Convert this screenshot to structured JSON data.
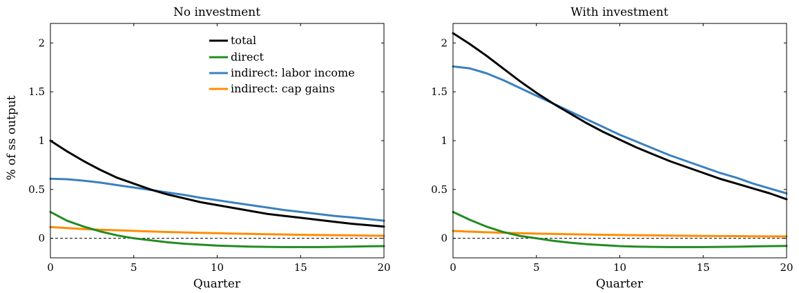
{
  "chart_data": [
    {
      "type": "line",
      "title": "No investment",
      "xlabel": "Quarter",
      "ylabel": "% of ss output",
      "xlim": [
        0,
        20
      ],
      "ylim": [
        -0.2,
        2.2
      ],
      "xticks": [
        0,
        5,
        10,
        15,
        20
      ],
      "xtick_labels": [
        "0",
        "5",
        "10",
        "15",
        "20"
      ],
      "yticks": [
        0,
        0.5,
        1,
        1.5,
        2
      ],
      "ytick_labels": [
        "0",
        "0.5",
        "1",
        "1.5",
        "2"
      ],
      "grid": false,
      "zero_line": "dashed",
      "legend_placement": "top-center",
      "x": [
        0,
        1,
        2,
        3,
        4,
        5,
        6,
        7,
        8,
        9,
        10,
        11,
        12,
        13,
        14,
        15,
        16,
        17,
        18,
        19,
        20
      ],
      "series": [
        {
          "name": "total",
          "color": "#000000",
          "values": [
            1.0,
            0.89,
            0.79,
            0.7,
            0.62,
            0.56,
            0.5,
            0.45,
            0.41,
            0.37,
            0.34,
            0.31,
            0.28,
            0.25,
            0.23,
            0.21,
            0.19,
            0.17,
            0.15,
            0.135,
            0.12
          ]
        },
        {
          "name": "direct",
          "color": "#228b22",
          "values": [
            0.27,
            0.18,
            0.12,
            0.07,
            0.03,
            0.0,
            -0.02,
            -0.04,
            -0.055,
            -0.065,
            -0.075,
            -0.08,
            -0.085,
            -0.088,
            -0.09,
            -0.09,
            -0.09,
            -0.088,
            -0.085,
            -0.082,
            -0.08
          ]
        },
        {
          "name": "indirect: labor income",
          "color": "#3a80c0",
          "values": [
            0.61,
            0.605,
            0.59,
            0.57,
            0.545,
            0.52,
            0.495,
            0.47,
            0.445,
            0.415,
            0.39,
            0.365,
            0.34,
            0.315,
            0.29,
            0.27,
            0.25,
            0.23,
            0.215,
            0.198,
            0.18
          ]
        },
        {
          "name": "indirect: cap gains",
          "color": "#ff8c00",
          "values": [
            0.115,
            0.105,
            0.095,
            0.088,
            0.082,
            0.076,
            0.07,
            0.065,
            0.06,
            0.056,
            0.052,
            0.048,
            0.045,
            0.042,
            0.039,
            0.036,
            0.034,
            0.032,
            0.03,
            0.028,
            0.026
          ]
        }
      ]
    },
    {
      "type": "line",
      "title": "With investment",
      "xlabel": "Quarter",
      "ylabel": "",
      "xlim": [
        0,
        20
      ],
      "ylim": [
        -0.2,
        2.2
      ],
      "xticks": [
        0,
        5,
        10,
        15,
        20
      ],
      "xtick_labels": [
        "0",
        "5",
        "10",
        "15",
        "20"
      ],
      "yticks": [
        0,
        0.5,
        1,
        1.5,
        2
      ],
      "ytick_labels": [
        "0",
        "0.5",
        "1",
        "1.5",
        "2"
      ],
      "grid": false,
      "zero_line": "dashed",
      "x": [
        0,
        1,
        2,
        3,
        4,
        5,
        6,
        7,
        8,
        9,
        10,
        11,
        12,
        13,
        14,
        15,
        16,
        17,
        18,
        19,
        20
      ],
      "series": [
        {
          "name": "total",
          "color": "#000000",
          "values": [
            2.1,
            1.99,
            1.87,
            1.74,
            1.61,
            1.49,
            1.38,
            1.28,
            1.18,
            1.09,
            1.01,
            0.93,
            0.86,
            0.79,
            0.73,
            0.67,
            0.61,
            0.56,
            0.51,
            0.46,
            0.4
          ]
        },
        {
          "name": "direct",
          "color": "#228b22",
          "values": [
            0.27,
            0.19,
            0.12,
            0.065,
            0.025,
            0.0,
            -0.025,
            -0.045,
            -0.06,
            -0.07,
            -0.08,
            -0.085,
            -0.088,
            -0.09,
            -0.09,
            -0.09,
            -0.088,
            -0.086,
            -0.083,
            -0.08,
            -0.078
          ]
        },
        {
          "name": "indirect: labor income",
          "color": "#3a80c0",
          "values": [
            1.76,
            1.74,
            1.69,
            1.62,
            1.54,
            1.46,
            1.38,
            1.3,
            1.22,
            1.14,
            1.06,
            0.99,
            0.92,
            0.85,
            0.79,
            0.73,
            0.67,
            0.62,
            0.56,
            0.51,
            0.46
          ]
        },
        {
          "name": "indirect: cap gains",
          "color": "#ff8c00",
          "values": [
            0.075,
            0.068,
            0.062,
            0.057,
            0.052,
            0.048,
            0.045,
            0.042,
            0.039,
            0.036,
            0.034,
            0.032,
            0.03,
            0.028,
            0.026,
            0.024,
            0.023,
            0.022,
            0.021,
            0.02,
            0.02
          ]
        }
      ]
    }
  ]
}
